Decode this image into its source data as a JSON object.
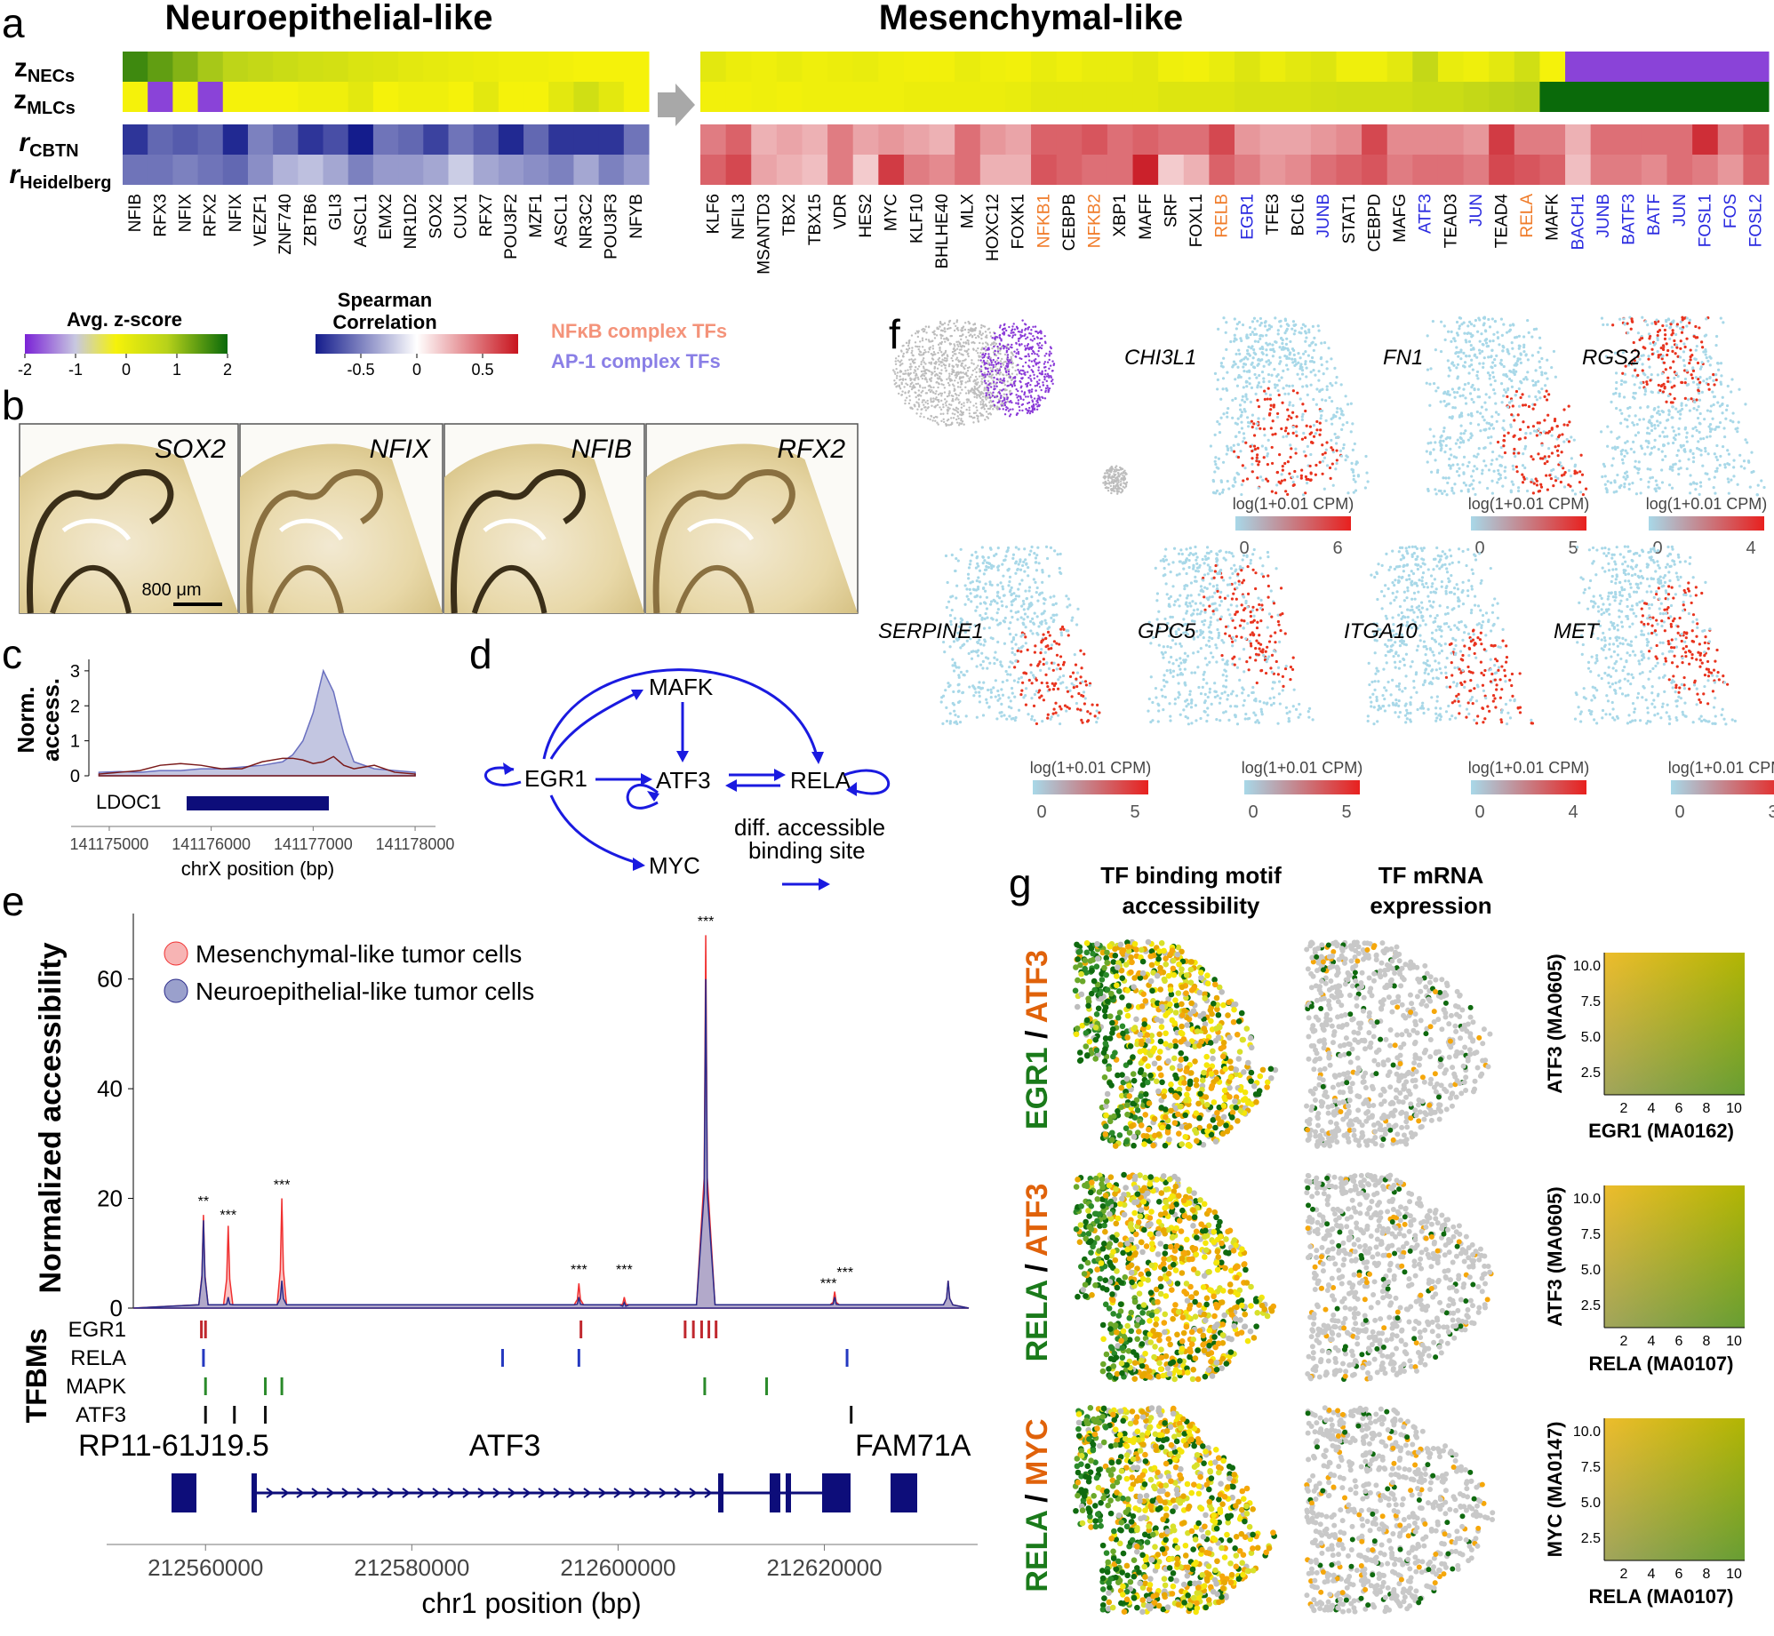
{
  "panel_letters": {
    "a": "a",
    "b": "b",
    "c": "c",
    "d": "d",
    "e": "e",
    "f": "f",
    "g": "g"
  },
  "panel_a": {
    "title_left": "Neuroepithelial-like",
    "title_right": "Mesenchymal-like",
    "row_labels": [
      {
        "main": "z",
        "sub": "NECs"
      },
      {
        "main": "z",
        "sub": "MLCs"
      },
      {
        "main": "r",
        "sub": "CBTN"
      },
      {
        "main": "r",
        "sub": "Heidelberg"
      }
    ],
    "left_genes": [
      "NFIB",
      "RFX3",
      "NFIX",
      "RFX2",
      "NFIX",
      "VEZF1",
      "ZNF740",
      "ZBTB6",
      "GLI3",
      "ASCL1",
      "EMX2",
      "NR1D2",
      "SOX2",
      "CUX1",
      "RFX7",
      "POU3F2",
      "MZF1",
      "ASCL1",
      "NR3C2",
      "POU3F3",
      "NFYB"
    ],
    "right_genes": [
      {
        "name": "KLF6",
        "group": "none"
      },
      {
        "name": "NFIL3",
        "group": "none"
      },
      {
        "name": "MSANTD3",
        "group": "none"
      },
      {
        "name": "TBX2",
        "group": "none"
      },
      {
        "name": "TBX15",
        "group": "none"
      },
      {
        "name": "VDR",
        "group": "none"
      },
      {
        "name": "HES2",
        "group": "none"
      },
      {
        "name": "MYC",
        "group": "none"
      },
      {
        "name": "KLF10",
        "group": "none"
      },
      {
        "name": "BHLHE40",
        "group": "none"
      },
      {
        "name": "MLX",
        "group": "none"
      },
      {
        "name": "HOXC12",
        "group": "none"
      },
      {
        "name": "FOXK1",
        "group": "none"
      },
      {
        "name": "NFKB1",
        "group": "nfkb"
      },
      {
        "name": "CEBPB",
        "group": "none"
      },
      {
        "name": "NFKB2",
        "group": "nfkb"
      },
      {
        "name": "XBP1",
        "group": "none"
      },
      {
        "name": "MAFF",
        "group": "none"
      },
      {
        "name": "SRF",
        "group": "none"
      },
      {
        "name": "FOXL1",
        "group": "none"
      },
      {
        "name": "RELB",
        "group": "nfkb"
      },
      {
        "name": "EGR1",
        "group": "ap1"
      },
      {
        "name": "TFE3",
        "group": "none"
      },
      {
        "name": "BCL6",
        "group": "none"
      },
      {
        "name": "JUNB",
        "group": "ap1"
      },
      {
        "name": "STAT1",
        "group": "none"
      },
      {
        "name": "CEBPD",
        "group": "none"
      },
      {
        "name": "MAFG",
        "group": "none"
      },
      {
        "name": "ATF3",
        "group": "ap1"
      },
      {
        "name": "TEAD3",
        "group": "none"
      },
      {
        "name": "JUN",
        "group": "ap1"
      },
      {
        "name": "TEAD4",
        "group": "none"
      },
      {
        "name": "RELA",
        "group": "nfkb"
      },
      {
        "name": "MAFK",
        "group": "none"
      },
      {
        "name": "BACH1",
        "group": "ap1"
      },
      {
        "name": "JUNB",
        "group": "ap1"
      },
      {
        "name": "BATF3",
        "group": "ap1"
      },
      {
        "name": "BATF",
        "group": "ap1"
      },
      {
        "name": "JUN",
        "group": "ap1"
      },
      {
        "name": "FOSL1",
        "group": "ap1"
      },
      {
        "name": "FOS",
        "group": "ap1"
      },
      {
        "name": "FOSL2",
        "group": "ap1"
      }
    ],
    "left_values": {
      "z_necs": [
        1.7,
        1.5,
        1.3,
        1.1,
        0.9,
        0.8,
        0.7,
        0.6,
        0.55,
        0.45,
        0.4,
        0.3,
        0.25,
        0.2,
        0.15,
        0.1,
        0.1,
        0.05,
        0.0,
        0.0,
        0.0
      ],
      "z_mlcs": [
        0.0,
        -1.8,
        0.0,
        -1.8,
        0.0,
        0.0,
        0.0,
        0.1,
        0.1,
        0.3,
        0.0,
        0.1,
        0.1,
        0.0,
        0.3,
        0.0,
        0.0,
        0.3,
        0.6,
        0.3,
        0.0
      ],
      "r_cbtn": [
        -0.8,
        -0.6,
        -0.65,
        -0.6,
        -0.85,
        -0.5,
        -0.6,
        -0.8,
        -0.7,
        -0.9,
        -0.55,
        -0.6,
        -0.75,
        -0.55,
        -0.65,
        -0.85,
        -0.6,
        -0.8,
        -0.8,
        -0.8,
        -0.55
      ],
      "r_heidelberg": [
        -0.55,
        -0.55,
        -0.5,
        -0.55,
        -0.6,
        -0.45,
        -0.3,
        -0.25,
        -0.35,
        -0.5,
        -0.4,
        -0.4,
        -0.35,
        -0.2,
        -0.35,
        -0.4,
        -0.45,
        -0.5,
        -0.35,
        -0.5,
        -0.4
      ]
    },
    "right_values": {
      "z_necs": [
        0.3,
        0.15,
        0.1,
        0.2,
        0.1,
        0.15,
        0.2,
        0.1,
        0.05,
        0.05,
        0.2,
        0.1,
        0.05,
        0.2,
        0.1,
        0.2,
        0.2,
        0.3,
        0.1,
        0.05,
        0.2,
        0.4,
        0.15,
        0.3,
        0.4,
        0.1,
        0.1,
        0.3,
        0.8,
        0.2,
        0.1,
        0.3,
        0.6,
        0.0,
        -1.8,
        -1.8,
        -1.8,
        -1.8,
        -1.8,
        -1.8,
        -1.8,
        -1.8
      ],
      "z_mlcs": [
        0.05,
        0.05,
        0.1,
        0.05,
        0.1,
        0.1,
        0.1,
        0.1,
        0.15,
        0.15,
        0.15,
        0.15,
        0.2,
        0.3,
        0.3,
        0.3,
        0.3,
        0.3,
        0.4,
        0.4,
        0.4,
        0.5,
        0.5,
        0.5,
        0.55,
        0.6,
        0.6,
        0.6,
        0.7,
        0.7,
        0.8,
        0.9,
        1.0,
        2.0,
        2.0,
        2.0,
        2.0,
        2.0,
        2.0,
        2.0,
        2.0,
        2.0
      ],
      "r_cbtn": [
        0.5,
        0.6,
        0.3,
        0.35,
        0.3,
        0.5,
        0.35,
        0.4,
        0.35,
        0.3,
        0.55,
        0.4,
        0.35,
        0.6,
        0.6,
        0.65,
        0.55,
        0.6,
        0.55,
        0.55,
        0.7,
        0.4,
        0.35,
        0.35,
        0.4,
        0.45,
        0.7,
        0.45,
        0.45,
        0.45,
        0.4,
        0.75,
        0.5,
        0.5,
        0.3,
        0.55,
        0.55,
        0.55,
        0.55,
        0.8,
        0.5,
        0.65
      ],
      "r_heidelberg": [
        0.6,
        0.7,
        0.35,
        0.3,
        0.25,
        0.5,
        0.2,
        0.75,
        0.5,
        0.45,
        0.55,
        0.3,
        0.3,
        0.65,
        0.6,
        0.55,
        0.55,
        0.85,
        0.2,
        0.3,
        0.6,
        0.5,
        0.4,
        0.45,
        0.55,
        0.6,
        0.65,
        0.5,
        0.55,
        0.55,
        0.5,
        0.7,
        0.65,
        0.6,
        0.25,
        0.5,
        0.5,
        0.45,
        0.55,
        0.5,
        0.4,
        0.6
      ]
    },
    "legend_z": {
      "title": "Avg. z-score",
      "ticks": [
        "-2",
        "-1",
        "0",
        "1",
        "2"
      ]
    },
    "legend_r": {
      "title_line1": "Spearman",
      "title_line2": "Correlation",
      "ticks": [
        "-0.5",
        "0",
        "0.5"
      ]
    },
    "group_legend": {
      "nfkb": "NFκB complex TFs",
      "ap1": "AP-1 complex TFs"
    },
    "colors": {
      "nfkb": "#f07c2a",
      "ap1": "#2a2ae0",
      "nfkb_legend": "#f4937a",
      "ap1_legend": "#8a7fe6",
      "arrow": "#a8a8a8"
    }
  },
  "panel_b": {
    "labels": [
      "SOX2",
      "NFIX",
      "NFIB",
      "RFX2"
    ],
    "scale_bar": "800 μm"
  },
  "panel_c": {
    "ylabel_line1": "Norm.",
    "ylabel_line2": "access.",
    "yticks": [
      "0",
      "1",
      "2",
      "3"
    ],
    "gene": "LDOC1",
    "xticks": [
      "141175000",
      "141176000",
      "141177000",
      "141178000"
    ],
    "xlabel": "chrX position (bp)",
    "chart_data": {
      "type": "area",
      "x": [
        141174900,
        141175100,
        141175300,
        141175500,
        141175700,
        141175900,
        141176100,
        141176300,
        141176500,
        141176700,
        141176800,
        141176900,
        141177000,
        141177100,
        141177200,
        141177300,
        141177400,
        141177600,
        141177800,
        141178000
      ],
      "series": [
        {
          "values": [
            0.1,
            0.12,
            0.1,
            0.15,
            0.15,
            0.2,
            0.2,
            0.25,
            0.3,
            0.4,
            0.6,
            1.0,
            1.8,
            3.0,
            2.4,
            1.2,
            0.4,
            0.2,
            0.15,
            0.1
          ]
        },
        {
          "values": [
            0.05,
            0.1,
            0.15,
            0.3,
            0.35,
            0.3,
            0.2,
            0.2,
            0.4,
            0.5,
            0.5,
            0.45,
            0.35,
            0.4,
            0.55,
            0.3,
            0.2,
            0.3,
            0.1,
            0.05
          ]
        }
      ],
      "ylim": [
        0,
        3.2
      ]
    }
  },
  "panel_d": {
    "nodes": [
      "EGR1",
      "MAFK",
      "ATF3",
      "RELA",
      "MYC"
    ],
    "legend_line1": "diff. accessible",
    "legend_line2": "binding site"
  },
  "panel_e": {
    "ylabel": "Normalized accessibility",
    "legend": [
      "Mesenchymal-like tumor cells",
      "Neuroepithelial-like tumor cells"
    ],
    "yticks": [
      "0",
      "20",
      "40",
      "60"
    ],
    "xticks": [
      "212560000",
      "212580000",
      "212600000",
      "212620000"
    ],
    "xlabel": "chr1 position (bp)",
    "significance": [
      "**",
      "***",
      "***",
      "***",
      "***",
      "***",
      "***",
      "***"
    ],
    "tfbm_title": "TFBMs",
    "tfbm_rows": [
      "EGR1",
      "RELA",
      "MAPK",
      "ATF3"
    ],
    "tfbm_positions": {
      "EGR1": [
        212559600,
        212560000,
        212596400,
        212606500,
        212607300,
        212608100,
        212608800,
        212609500
      ],
      "RELA": [
        212559800,
        212588800,
        212596200,
        212622200
      ],
      "MAPK": [
        212560000,
        212565800,
        212567400,
        212608400,
        212614400
      ],
      "ATF3": [
        212560000,
        212562800,
        212565800,
        212622600
      ]
    },
    "genes": [
      "RP11-61J19.5",
      "ATF3",
      "FAM71A"
    ],
    "colors": {
      "mesenchymal": "#f05a5a",
      "neuroepithelial": "#8a8fc4",
      "egr1": "#c0282e",
      "rela": "#2438c0",
      "mapk": "#2a8a2a",
      "atf3": "#111111",
      "gene": "#0d0d7a"
    },
    "chart_data": {
      "type": "area",
      "x_range": [
        212553000,
        212634000
      ],
      "peaks": [
        {
          "x": 212559800,
          "mesenchymal": 17,
          "neuroepithelial": 16
        },
        {
          "x": 212562200,
          "mesenchymal": 15,
          "neuroepithelial": 2
        },
        {
          "x": 212567400,
          "mesenchymal": 20,
          "neuroepithelial": 5
        },
        {
          "x": 212596200,
          "mesenchymal": 4.5,
          "neuroepithelial": 2
        },
        {
          "x": 212600600,
          "mesenchymal": 2,
          "neuroepithelial": 1
        },
        {
          "x": 212608500,
          "mesenchymal": 68,
          "neuroepithelial": 60
        },
        {
          "x": 212621000,
          "mesenchymal": 3,
          "neuroepithelial": 2
        },
        {
          "x": 212632000,
          "mesenchymal": 5,
          "neuroepithelial": 5
        }
      ],
      "ylim": [
        0,
        70
      ]
    }
  },
  "panel_f": {
    "genes": [
      "CHI3L1",
      "FN1",
      "RGS2",
      "SERPINE1",
      "GPC5",
      "ITGA10",
      "MET"
    ],
    "scale_label": "log(1+0.01 CPM)",
    "scale_max": [
      "6",
      "5",
      "4",
      "5",
      "5",
      "4",
      "3"
    ],
    "scale_min": "0"
  },
  "panel_g": {
    "col1_line1": "TF binding motif",
    "col1_line2": "accessibility",
    "col2_line1": "TF mRNA",
    "col2_line2": "expression",
    "rows": [
      {
        "a": "EGR1",
        "b": "ATF3",
        "xlabel": "EGR1 (MA0162)",
        "ylabel": "ATF3 (MA0605)"
      },
      {
        "a": "RELA",
        "b": "ATF3",
        "xlabel": "RELA (MA0107)",
        "ylabel": "ATF3 (MA0605)"
      },
      {
        "a": "RELA",
        "b": "MYC",
        "xlabel": "RELA (MA0107)",
        "ylabel": "MYC (MA0147)"
      }
    ],
    "slash": "/",
    "xticks": [
      "2",
      "4",
      "6",
      "8",
      "10"
    ],
    "yticks": [
      "2.5",
      "5.0",
      "7.5",
      "10.0"
    ],
    "colors": {
      "green": "#1a7a1a",
      "orange": "#e0620a"
    }
  }
}
